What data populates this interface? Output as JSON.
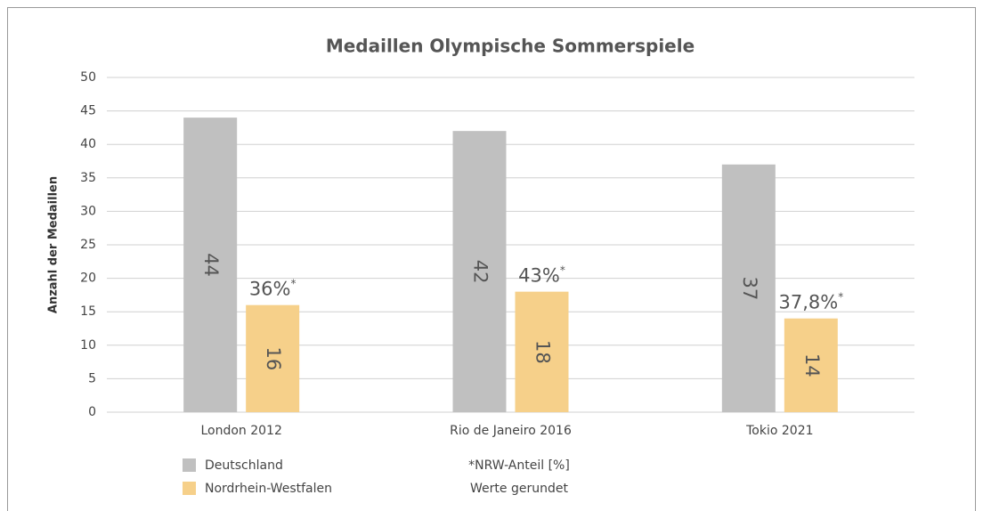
{
  "chart_data": {
    "type": "bar",
    "title": "Medaillen Olympische Sommerspiele",
    "y_label": "Anzahl der Medaillen",
    "categories": [
      "London 2012",
      "Rio de Janeiro 2016",
      "Tokio 2021"
    ],
    "series": [
      {
        "name": "Deutschland",
        "color": "#c0c0c0",
        "values": [
          44,
          42,
          37
        ]
      },
      {
        "name": "Nordrhein-Westfalen",
        "color": "#f6d08a",
        "values": [
          16,
          18,
          14
        ]
      }
    ],
    "nrw_shares": [
      "36%",
      "43%",
      "37,8%"
    ],
    "share_marker": "*",
    "notes": [
      "*NRW-Anteil [%]",
      "Werte gerundet"
    ],
    "ylim": [
      0,
      50
    ],
    "yticks": [
      0,
      5,
      10,
      15,
      20,
      25,
      30,
      35,
      40,
      45,
      50
    ],
    "grid": true
  }
}
